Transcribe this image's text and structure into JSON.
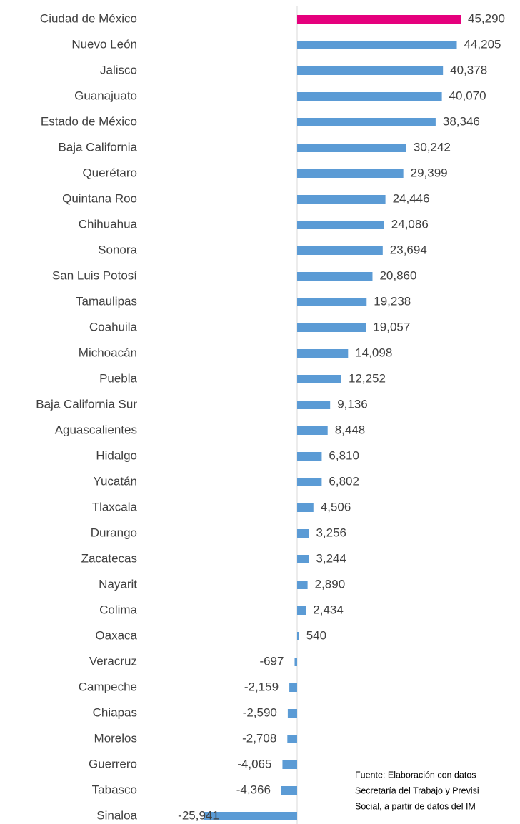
{
  "chart_data": {
    "type": "bar",
    "orientation": "horizontal",
    "categories": [
      "Ciudad de México",
      "Nuevo León",
      "Jalisco",
      "Guanajuato",
      "Estado de México",
      "Baja California",
      "Querétaro",
      "Quintana Roo",
      "Chihuahua",
      "Sonora",
      "San Luis Potosí",
      "Tamaulipas",
      "Coahuila",
      "Michoacán",
      "Puebla",
      "Baja California Sur",
      "Aguascalientes",
      "Hidalgo",
      "Yucatán",
      "Tlaxcala",
      "Durango",
      "Zacatecas",
      "Nayarit",
      "Colima",
      "Oaxaca",
      "Veracruz",
      "Campeche",
      "Chiapas",
      "Morelos",
      "Guerrero",
      "Tabasco",
      "Sinaloa"
    ],
    "values": [
      45290,
      44205,
      40378,
      40070,
      38346,
      30242,
      29399,
      24446,
      24086,
      23694,
      20860,
      19238,
      19057,
      14098,
      12252,
      9136,
      8448,
      6810,
      6802,
      4506,
      3256,
      3244,
      2890,
      2434,
      540,
      -697,
      -2159,
      -2590,
      -2708,
      -4065,
      -4366,
      -25941
    ],
    "value_labels": [
      "45,290",
      "44,205",
      "40,378",
      "40,070",
      "38,346",
      "30,242",
      "29,399",
      "24,446",
      "24,086",
      "23,694",
      "20,860",
      "19,238",
      "19,057",
      "14,098",
      "12,252",
      "9,136",
      "8,448",
      "6,810",
      "6,802",
      "4,506",
      "3,256",
      "3,244",
      "2,890",
      "2,434",
      "540",
      "-697",
      "-2,159",
      "-2,590",
      "-2,708",
      "-4,065",
      "-4,366",
      "-25,941"
    ],
    "colors": [
      "#e5007d",
      "#5b9bd5",
      "#5b9bd5",
      "#5b9bd5",
      "#5b9bd5",
      "#5b9bd5",
      "#5b9bd5",
      "#5b9bd5",
      "#5b9bd5",
      "#5b9bd5",
      "#5b9bd5",
      "#5b9bd5",
      "#5b9bd5",
      "#5b9bd5",
      "#5b9bd5",
      "#5b9bd5",
      "#5b9bd5",
      "#5b9bd5",
      "#5b9bd5",
      "#5b9bd5",
      "#5b9bd5",
      "#5b9bd5",
      "#5b9bd5",
      "#5b9bd5",
      "#5b9bd5",
      "#5b9bd5",
      "#5b9bd5",
      "#5b9bd5",
      "#5b9bd5",
      "#5b9bd5",
      "#5b9bd5",
      "#5b9bd5"
    ],
    "source": [
      "Fuente: Elaboración con datos",
      "Secretaría del Trabajo y Previsi",
      "Social, a partir de datos del IM"
    ]
  }
}
